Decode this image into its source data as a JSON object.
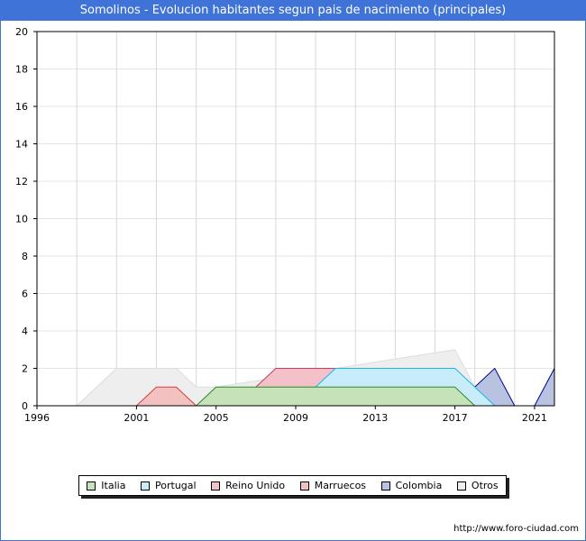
{
  "title": "Somolinos - Evolucion habitantes segun pais de nacimiento (principales)",
  "footer": "http://www.foro-ciudad.com",
  "chart_data": {
    "type": "area",
    "title": "Somolinos - Evolucion habitantes segun pais de nacimiento (principales)",
    "xlabel": "",
    "ylabel": "",
    "xlim": [
      1996,
      2022
    ],
    "ylim": [
      0,
      20
    ],
    "x_ticks": [
      1996,
      2001,
      2005,
      2009,
      2013,
      2017,
      2021
    ],
    "y_ticks": [
      0,
      2,
      4,
      6,
      8,
      10,
      12,
      14,
      16,
      18,
      20
    ],
    "x_gridlines": [
      1996,
      1998,
      2000,
      2002,
      2004,
      2006,
      2008,
      2010,
      2012,
      2014,
      2016,
      2018,
      2020,
      2022
    ],
    "grid": true,
    "legend_position": "bottom",
    "series": [
      {
        "name": "Otros",
        "color": "#eeeeee",
        "stroke": "#dddddd",
        "x": [
          1998,
          2000,
          2003,
          2004,
          2005,
          2017,
          2018
        ],
        "y": [
          0,
          2,
          2,
          1,
          1,
          3,
          1
        ]
      },
      {
        "name": "Colombia",
        "color": "#b7c3e0",
        "stroke": "#00008b",
        "x": [
          2018,
          2019,
          2020,
          2021,
          2022
        ],
        "y": [
          1,
          2,
          0,
          0,
          2
        ]
      },
      {
        "name": "Marruecos",
        "color": "#f4c1c1",
        "stroke": "#d04040",
        "x": [
          2001,
          2002,
          2003,
          2004
        ],
        "y": [
          0,
          1,
          1,
          0
        ]
      },
      {
        "name": "Reino Unido",
        "color": "#f4c1c8",
        "stroke": "#c04060",
        "x": [
          2007,
          2008,
          2011
        ],
        "y": [
          1,
          2,
          2
        ]
      },
      {
        "name": "Portugal",
        "color": "#c8ecfa",
        "stroke": "#1fb4e8",
        "x": [
          2010,
          2011,
          2017,
          2019
        ],
        "y": [
          1,
          2,
          2,
          0
        ]
      },
      {
        "name": "Italia",
        "color": "#c6e2b8",
        "stroke": "#2d8a2d",
        "x": [
          2004,
          2005,
          2017,
          2018
        ],
        "y": [
          0,
          1,
          1,
          0
        ]
      }
    ],
    "legend": [
      {
        "label": "Italia",
        "color": "#c6e2b8"
      },
      {
        "label": "Portugal",
        "color": "#c8ecfa"
      },
      {
        "label": "Reino Unido",
        "color": "#f4c1c8"
      },
      {
        "label": "Marruecos",
        "color": "#f4c1c1"
      },
      {
        "label": "Colombia",
        "color": "#b7c3e0"
      },
      {
        "label": "Otros",
        "color": "#eeeeee"
      }
    ]
  }
}
